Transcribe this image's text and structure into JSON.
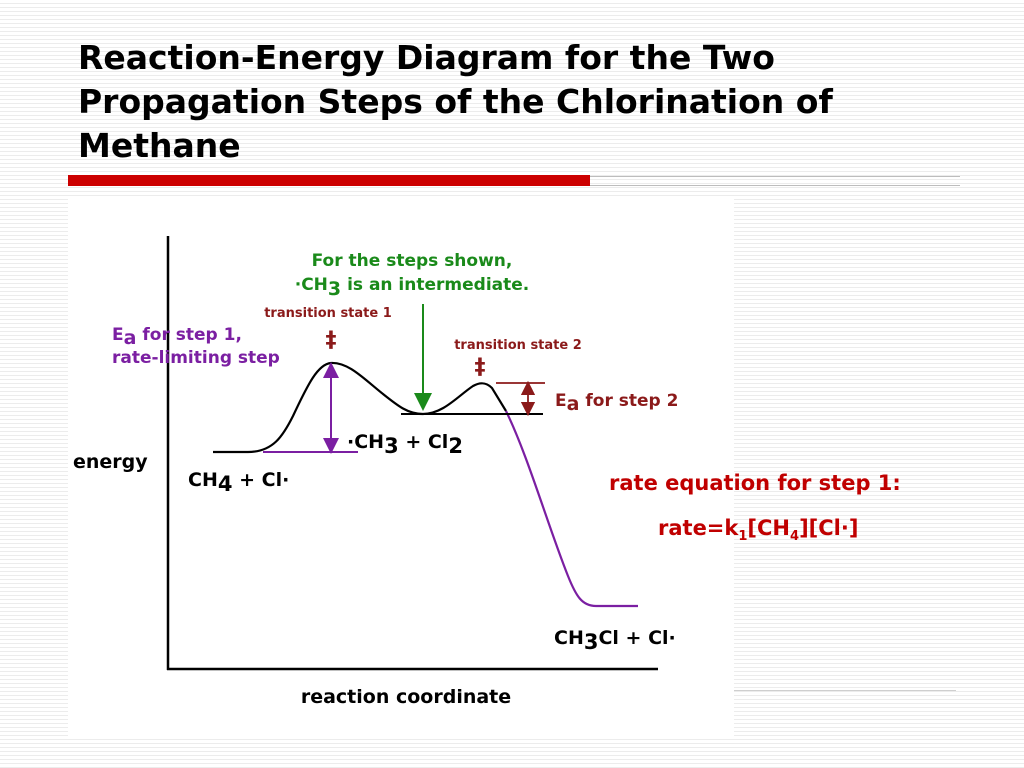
{
  "slide": {
    "title": "Reaction-Energy Diagram for the Two Propagation Steps of the Chlorination of Methane"
  },
  "diagram": {
    "y_axis_label": "energy",
    "x_axis_label": "reaction coordinate",
    "intermediate_note": {
      "line1": "For the steps shown,",
      "line2_prefix": "·CH",
      "line2_sub": "3",
      "line2_suffix": " is an intermediate."
    },
    "ts1_label": "transition state 1",
    "ts2_label": "transition state 2",
    "ts_symbol": "‡",
    "ea1": {
      "prefix": "E",
      "sub": "a",
      "suffix": " for step 1,",
      "line2": "rate-limiting step"
    },
    "ea2": {
      "prefix": "E",
      "sub": "a",
      "suffix": " for step 2"
    },
    "reactants": {
      "a": "CH",
      "a_sub": "4",
      "b": " + Cl·"
    },
    "intermediate": {
      "a": "·CH",
      "a_sub": "3",
      "b": " + Cl",
      "b_sub": "2"
    },
    "products": {
      "a": "CH",
      "a_sub": "3",
      "b": "Cl + Cl·"
    },
    "colors": {
      "curve_step1": "#000000",
      "curve_step2": "#7b1fa2",
      "arrow_ea": "#7b1fa2",
      "arrow_ea2": "#8b1a1a",
      "intermediate_note": "#1a8a1a",
      "ts_label": "#8b1a1a",
      "ea1_label": "#7b1fa2",
      "ea2_label": "#8b1a1a",
      "rate_text": "#c00000",
      "title_rule": "#cc0000"
    }
  },
  "rate": {
    "label": "rate equation for step 1:",
    "prefix": "rate=k",
    "k_sub": "1",
    "middle": "[CH",
    "ch_sub": "4",
    "suffix": "][Cl·]"
  }
}
